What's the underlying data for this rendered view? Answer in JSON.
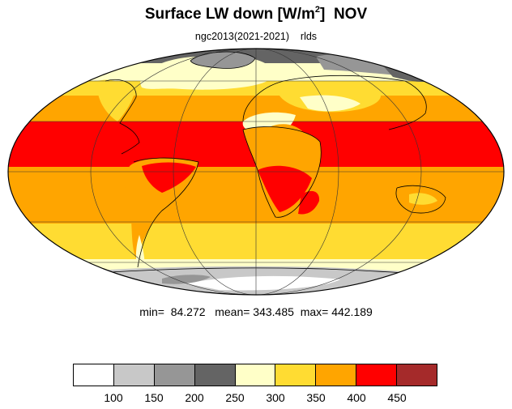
{
  "title_main": "Surface LW down [W/m",
  "title_sup": "2",
  "title_close": "]",
  "title_month": "NOV",
  "subtitle_source": "ngc2013(2021-2021)",
  "subtitle_var": "rlds",
  "stats": {
    "min": "min=  84.272",
    "mean": "mean= 343.485",
    "max": "max= 442.189"
  },
  "colorbar": {
    "colors": [
      "#ffffff",
      "#c8c8c8",
      "#969696",
      "#646464",
      "#ffffc8",
      "#ffdc32",
      "#ffa500",
      "#ff0000",
      "#a52a2a"
    ],
    "labels": [
      "100",
      "150",
      "200",
      "250",
      "300",
      "350",
      "400",
      "450"
    ]
  }
}
